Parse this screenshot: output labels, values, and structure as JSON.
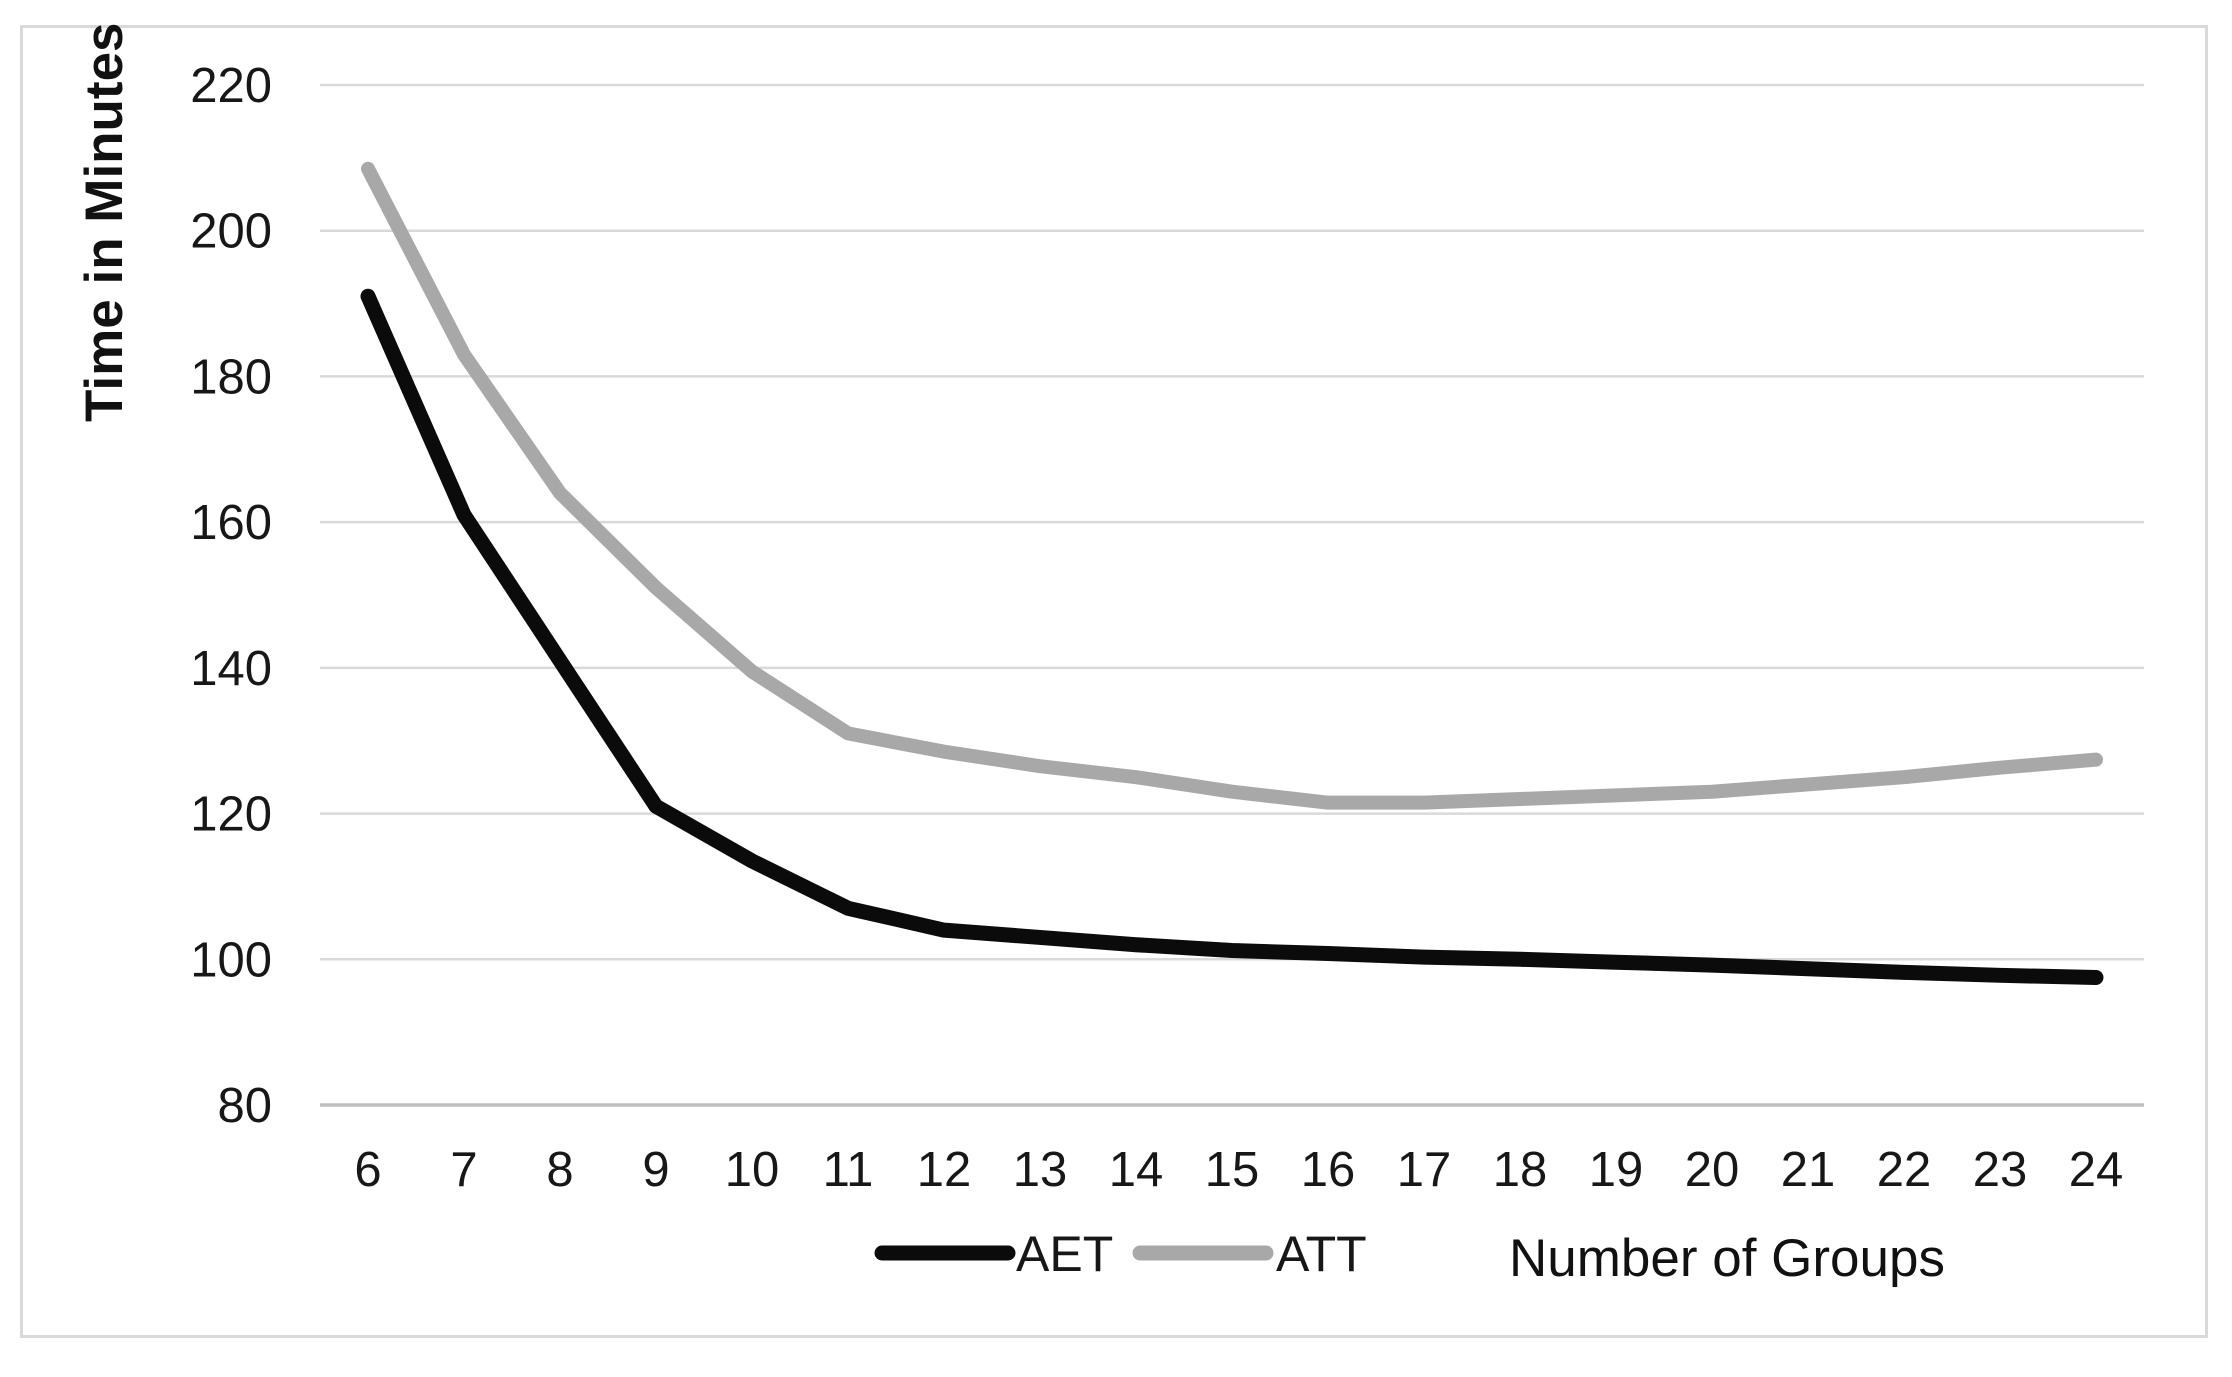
{
  "chart_data": {
    "type": "line",
    "title": "",
    "xlabel": "Number of Groups",
    "ylabel": "Time in Minutes",
    "x": [
      6,
      7,
      8,
      9,
      10,
      11,
      12,
      13,
      14,
      15,
      16,
      17,
      18,
      19,
      20,
      21,
      22,
      23,
      24
    ],
    "series": [
      {
        "name": "AET",
        "color": "#0b0b0b",
        "values": [
          191,
          161,
          141,
          121,
          113.5,
          107,
          104,
          103,
          102,
          101.2,
          100.8,
          100.3,
          100,
          99.6,
          99.2,
          98.7,
          98.2,
          97.8,
          97.5
        ]
      },
      {
        "name": "ATT",
        "color": "#a8a8a8",
        "values": [
          208.5,
          183,
          164,
          151,
          139.5,
          131,
          128.5,
          126.5,
          125,
          123,
          121.5,
          121.5,
          122,
          122.5,
          123,
          124,
          125,
          126.3,
          127.4
        ]
      }
    ],
    "ylim": [
      80,
      220
    ],
    "yticks": [
      80,
      100,
      120,
      140,
      160,
      180,
      200,
      220
    ],
    "grid": true,
    "grid_color": "#d9d9d9",
    "axis_line_color": "#bfbfbf",
    "frame_color": "#d9d9d9",
    "legend_position": "bottom"
  }
}
